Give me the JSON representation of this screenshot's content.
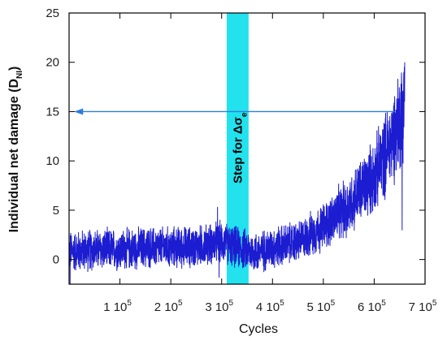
{
  "chart_data": {
    "type": "line",
    "xlabel": "Cycles",
    "ylabel_main": "Individual net damage (D",
    "ylabel_sub": "NI",
    "ylabel_close": ")",
    "xlim": [
      0,
      700000
    ],
    "ylim": [
      -2.5,
      25
    ],
    "x_ticks": [
      {
        "value": 100000,
        "mant": "1 10",
        "exp": "5"
      },
      {
        "value": 200000,
        "mant": "2 10",
        "exp": "5"
      },
      {
        "value": 300000,
        "mant": "3 10",
        "exp": "5"
      },
      {
        "value": 400000,
        "mant": "4 10",
        "exp": "5"
      },
      {
        "value": 500000,
        "mant": "5 10",
        "exp": "5"
      },
      {
        "value": 600000,
        "mant": "6 10",
        "exp": "5"
      },
      {
        "value": 700000,
        "mant": "7 10",
        "exp": "5"
      }
    ],
    "y_ticks": [
      0,
      5,
      10,
      15,
      20,
      25
    ],
    "band": {
      "x_start": 310000,
      "x_end": 353000,
      "color": "#22e2ee",
      "label_main": "Step for Δσ",
      "label_sub": "e"
    },
    "arrow": {
      "x_start": 640000,
      "x_end": 10000,
      "y": 15,
      "color": "#2a7fd8"
    },
    "series": [
      {
        "color": "#1c1cd0",
        "envelope": [
          {
            "x": 0,
            "y": 0.8
          },
          {
            "x": 50000,
            "y": 1.0
          },
          {
            "x": 100000,
            "y": 1.0
          },
          {
            "x": 150000,
            "y": 1.2
          },
          {
            "x": 200000,
            "y": 1.2
          },
          {
            "x": 250000,
            "y": 1.3
          },
          {
            "x": 300000,
            "y": 1.8
          },
          {
            "x": 330000,
            "y": 1.2
          },
          {
            "x": 370000,
            "y": 0.7
          },
          {
            "x": 400000,
            "y": 1.2
          },
          {
            "x": 450000,
            "y": 1.8
          },
          {
            "x": 500000,
            "y": 3.3
          },
          {
            "x": 550000,
            "y": 5.5
          },
          {
            "x": 600000,
            "y": 8.5
          },
          {
            "x": 630000,
            "y": 11.5
          },
          {
            "x": 645000,
            "y": 13.5
          },
          {
            "x": 655000,
            "y": 15.0
          },
          {
            "x": 660000,
            "y": 17.5
          }
        ],
        "noise_amplitude": 2.0,
        "spikes": [
          {
            "x": 660000,
            "y": 20.0
          },
          {
            "x": 655000,
            "y": 3.0
          },
          {
            "x": 648000,
            "y": 13.5
          },
          {
            "x": 640000,
            "y": 15.0
          },
          {
            "x": 292000,
            "y": 5.3
          },
          {
            "x": 295000,
            "y": -1.8
          },
          {
            "x": 2000,
            "y": -2.5
          },
          {
            "x": 545000,
            "y": 2.2
          }
        ]
      }
    ]
  }
}
